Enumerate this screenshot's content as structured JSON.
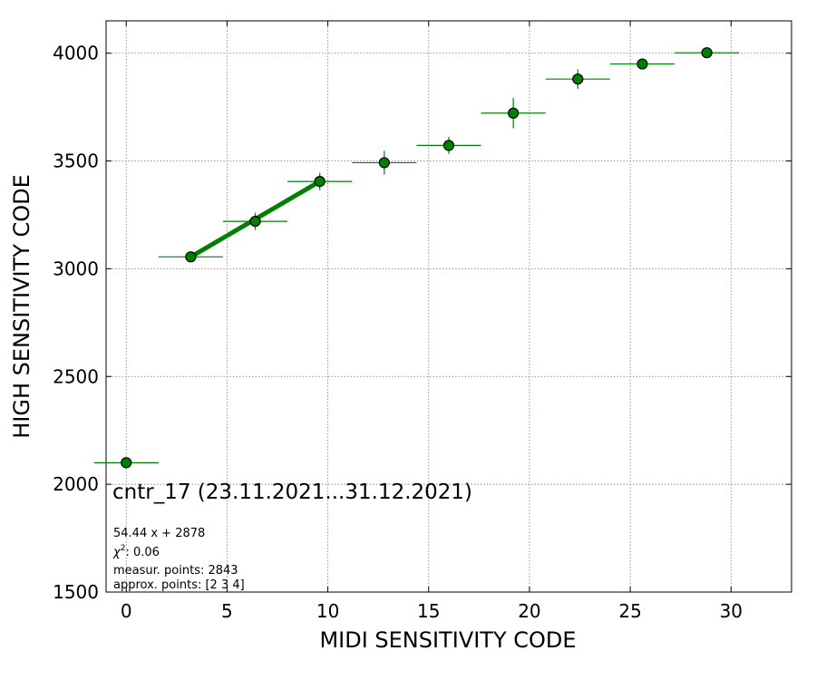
{
  "chart_data": {
    "type": "scatter",
    "xlabel": "MIDI SENSITIVITY CODE",
    "ylabel": "HIGH SENSITIVITY CODE",
    "xlim": [
      -1,
      33
    ],
    "ylim": [
      1500,
      4150
    ],
    "xticks": [
      0,
      5,
      10,
      15,
      20,
      25,
      30
    ],
    "yticks": [
      1500,
      2000,
      2500,
      3000,
      3500,
      4000
    ],
    "grid": true,
    "marker_color": "#008000",
    "marker_edge_color": "#000000",
    "fit_line_color": "#008000",
    "points": [
      {
        "x": 0.0,
        "y": 2100,
        "xerr": 1.6,
        "yerr": 0
      },
      {
        "x": 3.2,
        "y": 3055,
        "xerr": 1.6,
        "yerr": 25
      },
      {
        "x": 6.4,
        "y": 3220,
        "xerr": 1.6,
        "yerr": 40
      },
      {
        "x": 9.6,
        "y": 3405,
        "xerr": 1.6,
        "yerr": 40
      },
      {
        "x": 12.8,
        "y": 3492,
        "xerr": 1.6,
        "yerr": 55
      },
      {
        "x": 16.0,
        "y": 3572,
        "xerr": 1.6,
        "yerr": 40
      },
      {
        "x": 19.2,
        "y": 3722,
        "xerr": 1.6,
        "yerr": 70
      },
      {
        "x": 22.4,
        "y": 3880,
        "xerr": 1.6,
        "yerr": 45
      },
      {
        "x": 25.6,
        "y": 3950,
        "xerr": 1.6,
        "yerr": 20
      },
      {
        "x": 28.8,
        "y": 4002,
        "xerr": 1.6,
        "yerr": 15
      }
    ],
    "fit_line": {
      "x": [
        3.2,
        9.6
      ],
      "y": [
        3055,
        3405
      ]
    },
    "annotations": {
      "title": "cntr_17 (23.11.2021...31.12.2021)",
      "equation": "54.44 x + 2878",
      "chi2_symbol": "χ",
      "chi2_value": ": 0.06",
      "measur": "measur. points: 2843",
      "approx": "approx. points: [2 3 4]"
    }
  }
}
